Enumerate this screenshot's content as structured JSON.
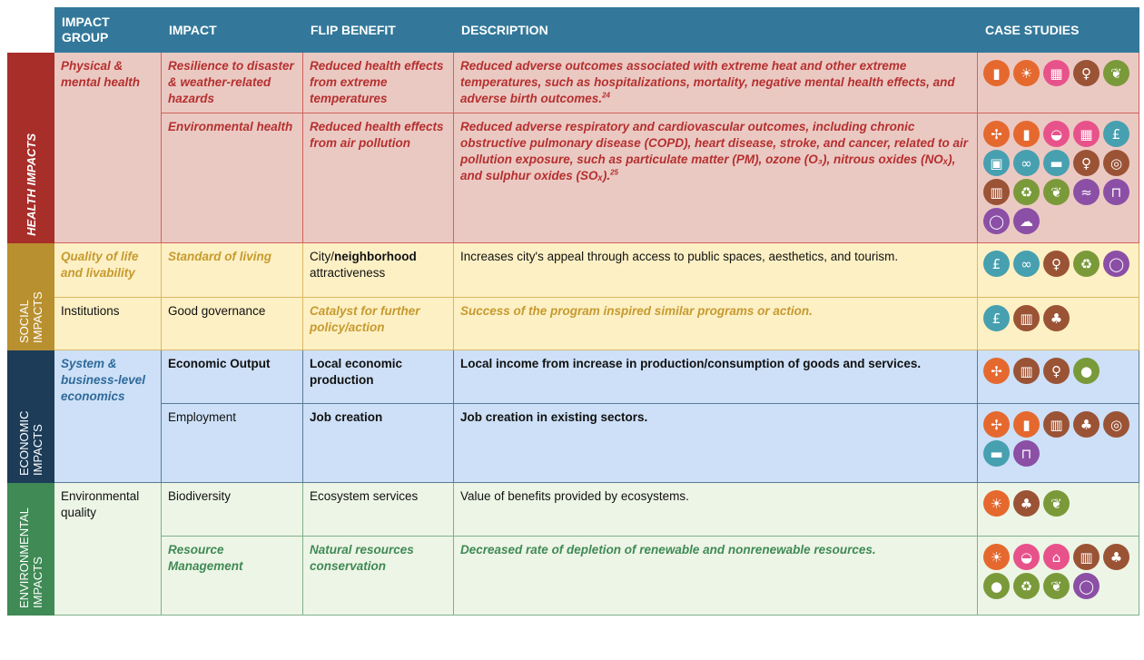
{
  "headers": [
    "IMPACT GROUP",
    "IMPACT",
    "FLIP BENEFIT",
    "DESCRIPTION",
    "CASE STUDIES"
  ],
  "colors": {
    "header": "#33789a",
    "icon_orange": "#e5692f",
    "icon_pink": "#e8528a",
    "icon_brown": "#9b5335",
    "icon_green": "#7a9a3a",
    "icon_teal": "#47a0b0",
    "icon_purple": "#8b4fa6"
  },
  "sections": [
    {
      "label": "HEALTH IMPACTS",
      "italic": true,
      "side": "#a82e2a",
      "bg": "#ebc9c3",
      "border": "#d0625c",
      "accent": "#b5302f"
    },
    {
      "label": "SOCIAL IMPACTS",
      "italic": false,
      "side": "#b8902f",
      "bg": "#fdf0c4",
      "border": "#d9b865",
      "accent": "#c69a2f"
    },
    {
      "label": "ECONOMIC IMPACTS",
      "italic": false,
      "side": "#1c3c58",
      "bg": "#cde0f7",
      "border": "#5a7b96",
      "accent": "#2f6a9a"
    },
    {
      "label": "ENVIRONMENTAL IMPACTS",
      "italic": false,
      "side": "#3f8a55",
      "bg": "#edf5e6",
      "border": "#7fb08a",
      "accent": "#3f8a55"
    }
  ],
  "groups": [
    {
      "section": 0,
      "text": "Physical & mental health",
      "style": "em"
    },
    {
      "section": 1,
      "text": "Quality of life and livability",
      "style": "em"
    },
    {
      "section": 1,
      "text": "Institutions",
      "style": "plain"
    },
    {
      "section": 2,
      "text": "System & business-level economics",
      "style": "em"
    },
    {
      "section": 3,
      "text": "Environmental quality",
      "style": "plain"
    }
  ],
  "rows": [
    {
      "section": 0,
      "impact": {
        "text": "Resilience to disaster & weather-related hazards",
        "style": "em"
      },
      "flip": [
        {
          "text": "Reduced health effects from extreme temperatures",
          "style": "em"
        }
      ],
      "desc": {
        "text": "Reduced adverse outcomes associated with extreme heat and other extreme temperatures, such as hospitalizations, mortality, negative mental health effects, and adverse birth outcomes.",
        "footnote": "24",
        "style": "em"
      },
      "icons": [
        [
          "battery-water",
          "orange"
        ],
        [
          "solar-panel",
          "orange"
        ],
        [
          "brick-wall",
          "pink"
        ],
        [
          "pedestrian",
          "brown"
        ],
        [
          "coffee-beans",
          "green"
        ]
      ]
    },
    {
      "section": 0,
      "impact": {
        "text": "Environmental health",
        "style": "em"
      },
      "flip": [
        {
          "text": "Reduced health effects from air pollution",
          "style": "em"
        }
      ],
      "desc": {
        "text": "Reduced adverse respiratory and cardiovascular outcomes, including chronic obstructive pulmonary disease (COPD), heart disease, stroke, and cancer, related to air pollution exposure, such as particulate matter (PM), ozone (O₃), nitrous oxides (NOₓ), and sulphur oxides (SOₓ).",
        "footnote": "25",
        "style": "em"
      },
      "icons": [
        [
          "wind-turbine",
          "orange"
        ],
        [
          "battery-water",
          "orange"
        ],
        [
          "frying-pan",
          "pink"
        ],
        [
          "brick-wall",
          "pink"
        ],
        [
          "electric-car",
          "teal"
        ],
        [
          "bus-clock",
          "teal"
        ],
        [
          "bicycle",
          "teal"
        ],
        [
          "electric-van",
          "teal"
        ],
        [
          "pedestrian",
          "brown"
        ],
        [
          "log",
          "brown"
        ],
        [
          "building-tree",
          "brown"
        ],
        [
          "recycle",
          "green"
        ],
        [
          "coffee-beans",
          "green"
        ],
        [
          "boat",
          "purple"
        ],
        [
          "barrier",
          "purple"
        ],
        [
          "circle-ring",
          "purple"
        ],
        [
          "cloud-trees",
          "purple"
        ]
      ]
    },
    {
      "section": 1,
      "impact": {
        "text": "Standard of living",
        "style": "em"
      },
      "flip": [
        {
          "text": "City/",
          "style": "plain"
        },
        {
          "text": "neighborhood",
          "style": "bold"
        },
        {
          "text": " attractiveness",
          "style": "plain"
        }
      ],
      "desc": {
        "text": "Increases city's appeal through access to public spaces, aesthetics, and tourism.",
        "style": "plain"
      },
      "icons": [
        [
          "electric-car",
          "teal"
        ],
        [
          "bicycle",
          "teal"
        ],
        [
          "pedestrian",
          "brown"
        ],
        [
          "recycle",
          "green"
        ],
        [
          "circle-ring",
          "purple"
        ]
      ]
    },
    {
      "section": 1,
      "impact": {
        "text": "Good governance",
        "style": "plain"
      },
      "flip": [
        {
          "text": "Catalyst for further policy/action",
          "style": "em"
        }
      ],
      "desc": {
        "text": "Success of the program inspired similar programs or action.",
        "style": "em"
      },
      "icons": [
        [
          "electric-car",
          "teal"
        ],
        [
          "building-tree",
          "brown"
        ],
        [
          "tree-roots",
          "brown"
        ]
      ]
    },
    {
      "section": 2,
      "impact": {
        "text": "Economic Output",
        "style": "bold"
      },
      "flip": [
        {
          "text": "Local economic production",
          "style": "bold"
        }
      ],
      "desc": {
        "text": "Local income from increase in production/consumption of goods and services.",
        "style": "bold"
      },
      "icons": [
        [
          "wind-turbine",
          "orange"
        ],
        [
          "building-tree",
          "brown"
        ],
        [
          "pedestrian",
          "brown"
        ],
        [
          "apple",
          "green"
        ]
      ]
    },
    {
      "section": 2,
      "impact": {
        "text": "Employment",
        "style": "plain"
      },
      "flip": [
        {
          "text": "Job creation",
          "style": "bold"
        }
      ],
      "desc": {
        "text": "Job creation in existing sectors.",
        "style": "bold"
      },
      "icons": [
        [
          "wind-turbine",
          "orange"
        ],
        [
          "battery-water",
          "orange"
        ],
        [
          "building-tree",
          "brown"
        ],
        [
          "tree-roots",
          "brown"
        ],
        [
          "log",
          "brown"
        ],
        [
          "electric-van",
          "teal"
        ],
        [
          "barrier",
          "purple"
        ]
      ]
    },
    {
      "section": 3,
      "impact": {
        "text": "Biodiversity",
        "style": "plain"
      },
      "flip": [
        {
          "text": "Ecosystem services",
          "style": "plain"
        }
      ],
      "desc": {
        "text": "Value of benefits provided by ecosystems.",
        "style": "plain"
      },
      "icons": [
        [
          "solar-panel",
          "orange"
        ],
        [
          "tree-roots",
          "brown"
        ],
        [
          "coffee-beans",
          "green"
        ]
      ]
    },
    {
      "section": 3,
      "impact": {
        "text": "Resource Management",
        "style": "em"
      },
      "flip": [
        {
          "text": "Natural resources conservation",
          "style": "em"
        }
      ],
      "desc": {
        "text": "Decreased rate of depletion of renewable and nonrenewable resources.",
        "style": "em"
      },
      "icons": [
        [
          "solar-panel",
          "orange"
        ],
        [
          "frying-pan",
          "pink"
        ],
        [
          "house",
          "pink"
        ],
        [
          "building-tree",
          "brown"
        ],
        [
          "tree-roots",
          "brown"
        ],
        [
          "apple",
          "green"
        ],
        [
          "recycle",
          "green"
        ],
        [
          "coffee-beans",
          "green"
        ],
        [
          "circle-ring",
          "purple"
        ]
      ]
    }
  ]
}
